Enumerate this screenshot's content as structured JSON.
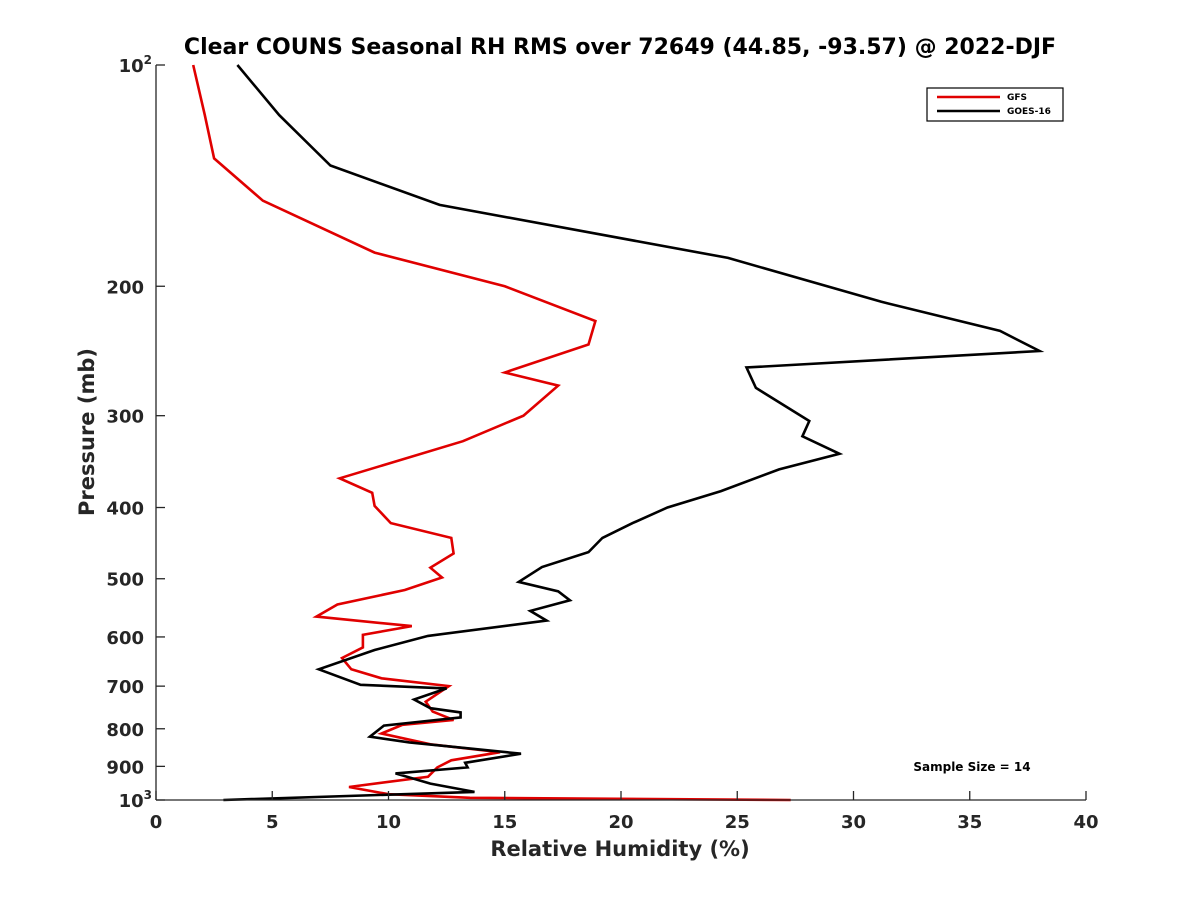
{
  "chart_data": {
    "type": "line",
    "title": "Clear COUNS Seasonal RH RMS over 72649 (44.85, -93.57) @ 2022-DJF",
    "xlabel": "Relative Humidity (%)",
    "ylabel": "Pressure (mb)",
    "xlim": [
      0,
      40
    ],
    "ylim": [
      100,
      1000
    ],
    "yscale": "log",
    "y_reversed": true,
    "x_ticks": [
      0,
      5,
      10,
      15,
      20,
      25,
      30,
      35,
      40
    ],
    "x_tick_labels": [
      "0",
      "5",
      "10",
      "15",
      "20",
      "25",
      "30",
      "35",
      "40"
    ],
    "y_ticks": [
      200,
      300,
      400,
      500,
      600,
      700,
      800,
      900
    ],
    "y_tick_labels": [
      "200",
      "300",
      "400",
      "500",
      "600",
      "700",
      "800",
      "900"
    ],
    "y_end_labels": [
      {
        "value": 100,
        "base": "10",
        "exp": "2"
      },
      {
        "value": 1000,
        "base": "10",
        "exp": "3"
      }
    ],
    "legend_position": "top-right",
    "annotation": "Sample Size = 14",
    "series": [
      {
        "name": "GFS",
        "color": "#e00000",
        "points": [
          [
            1.6,
            100
          ],
          [
            2.1,
            117
          ],
          [
            2.5,
            134
          ],
          [
            4.6,
            153
          ],
          [
            9.4,
            180
          ],
          [
            15.0,
            200
          ],
          [
            18.9,
            223
          ],
          [
            18.6,
            240
          ],
          [
            15.0,
            262
          ],
          [
            17.3,
            273
          ],
          [
            15.8,
            300
          ],
          [
            13.2,
            325
          ],
          [
            7.9,
            365
          ],
          [
            9.3,
            382
          ],
          [
            9.4,
            398
          ],
          [
            10.1,
            420
          ],
          [
            12.7,
            440
          ],
          [
            12.8,
            462
          ],
          [
            11.8,
            483
          ],
          [
            12.3,
            498
          ],
          [
            10.7,
            518
          ],
          [
            7.8,
            542
          ],
          [
            6.9,
            563
          ],
          [
            11.0,
            580
          ],
          [
            8.9,
            596
          ],
          [
            8.9,
            620
          ],
          [
            8.0,
            641
          ],
          [
            8.4,
            664
          ],
          [
            9.7,
            683
          ],
          [
            12.6,
            700
          ],
          [
            11.6,
            735
          ],
          [
            11.9,
            758
          ],
          [
            12.8,
            778
          ],
          [
            10.6,
            790
          ],
          [
            9.7,
            812
          ],
          [
            11.8,
            840
          ],
          [
            14.8,
            861
          ],
          [
            12.7,
            883
          ],
          [
            12.1,
            903
          ],
          [
            11.7,
            930
          ],
          [
            8.3,
            960
          ],
          [
            10.0,
            982
          ],
          [
            13.5,
            993
          ],
          [
            27.3,
            1000
          ]
        ]
      },
      {
        "name": "GOES-16",
        "color": "#000000",
        "points": [
          [
            3.5,
            100
          ],
          [
            5.3,
            117
          ],
          [
            7.5,
            137
          ],
          [
            12.2,
            155
          ],
          [
            24.6,
            183
          ],
          [
            31.2,
            210
          ],
          [
            36.3,
            230
          ],
          [
            38.0,
            245
          ],
          [
            25.4,
            258
          ],
          [
            25.8,
            275
          ],
          [
            28.1,
            305
          ],
          [
            27.8,
            320
          ],
          [
            29.4,
            338
          ],
          [
            26.8,
            355
          ],
          [
            24.3,
            380
          ],
          [
            22.0,
            400
          ],
          [
            20.5,
            420
          ],
          [
            19.2,
            440
          ],
          [
            18.6,
            460
          ],
          [
            16.6,
            482
          ],
          [
            15.6,
            505
          ],
          [
            17.3,
            520
          ],
          [
            17.8,
            535
          ],
          [
            16.1,
            553
          ],
          [
            16.8,
            570
          ],
          [
            11.7,
            598
          ],
          [
            9.4,
            625
          ],
          [
            7.0,
            664
          ],
          [
            8.8,
            697
          ],
          [
            12.5,
            705
          ],
          [
            11.1,
            730
          ],
          [
            11.8,
            750
          ],
          [
            13.1,
            760
          ],
          [
            13.1,
            772
          ],
          [
            9.8,
            792
          ],
          [
            9.2,
            820
          ],
          [
            10.9,
            835
          ],
          [
            15.7,
            865
          ],
          [
            13.3,
            890
          ],
          [
            13.4,
            903
          ],
          [
            10.3,
            920
          ],
          [
            11.8,
            950
          ],
          [
            13.7,
            975
          ],
          [
            2.9,
            1000
          ]
        ]
      }
    ]
  }
}
